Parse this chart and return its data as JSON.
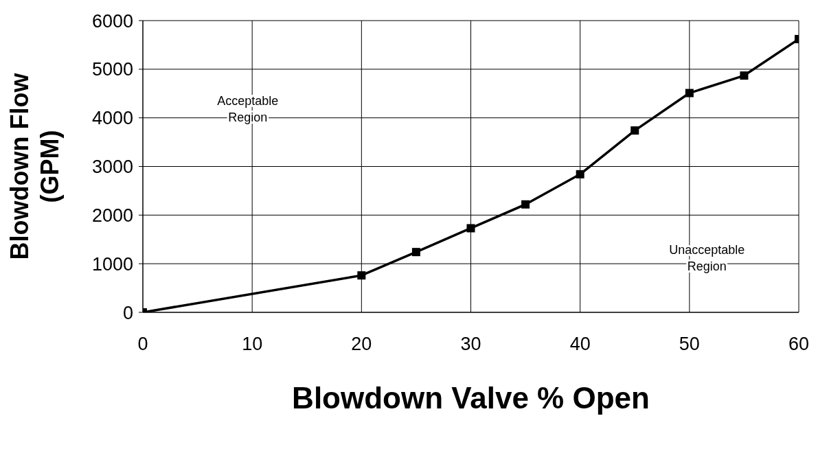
{
  "chart_data": {
    "type": "line",
    "xlabel": "Blowdown Valve % Open",
    "ylabel": "Blowdown Flow (GPM)",
    "x": [
      0,
      20,
      25,
      30,
      35,
      40,
      45,
      50,
      55,
      60
    ],
    "series": [
      {
        "color": "#000000",
        "values": [
          0,
          760,
          1240,
          1730,
          2220,
          2840,
          3740,
          4510,
          4870,
          5620
        ]
      }
    ],
    "xlim": [
      0,
      60
    ],
    "xticks": [
      0,
      10,
      20,
      30,
      40,
      50,
      60
    ],
    "ylim": [
      0,
      6000
    ],
    "yticks": [
      0,
      1000,
      2000,
      3000,
      4000,
      5000,
      6000
    ],
    "grid": true,
    "marker": "square",
    "line_style": "solid",
    "annotations": [
      "Acceptable Region",
      "Unacceptable Region"
    ]
  }
}
